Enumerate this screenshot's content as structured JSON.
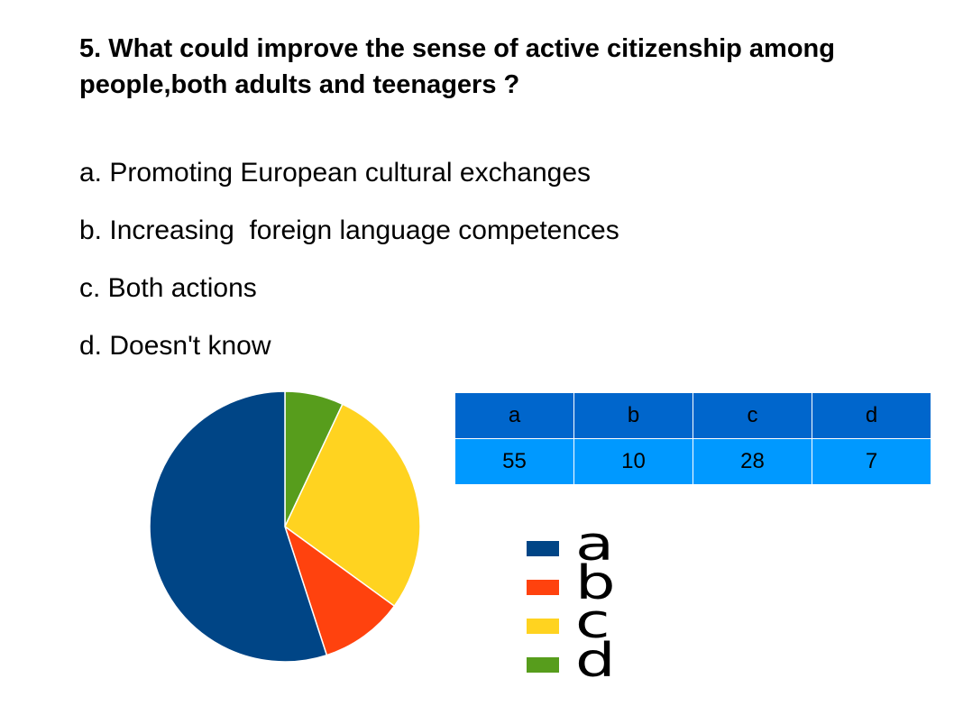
{
  "question": "5. What could improve the sense of active citizenship among people,both adults and teenagers ?",
  "options": [
    "a. Promoting European cultural exchanges",
    "b. Increasing  foreign language competences",
    "c. Both actions",
    "d. Doesn't know"
  ],
  "table": {
    "headers": [
      "a",
      "b",
      "c",
      "d"
    ],
    "values": [
      "55",
      "10",
      "28",
      "7"
    ]
  },
  "legend": [
    "a",
    "b",
    "c",
    "d"
  ],
  "colors": {
    "a": "#004586",
    "b": "#ff420e",
    "c": "#ffd320",
    "d": "#579d1c",
    "table_header": "#0066cc",
    "table_values": "#0099ff"
  },
  "chart_data": {
    "type": "pie",
    "categories": [
      "a",
      "b",
      "c",
      "d"
    ],
    "values": [
      55,
      10,
      28,
      7
    ],
    "title": "",
    "legend": "right"
  }
}
